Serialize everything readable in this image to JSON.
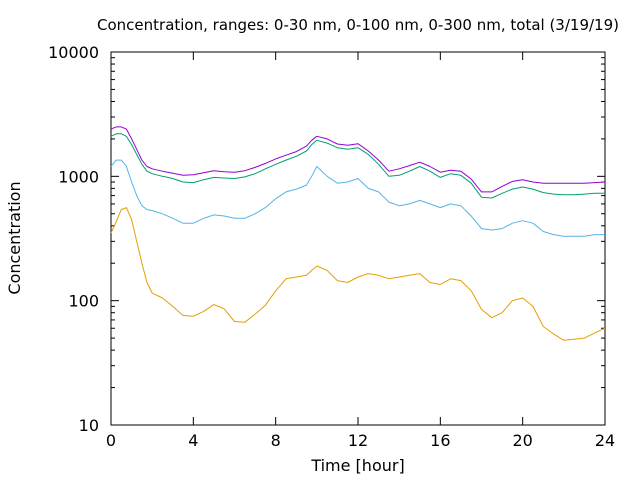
{
  "chart_data": {
    "type": "line",
    "title": "Concentration, ranges: 0-30 nm, 0-100 nm, 0-300 nm, total (3/19/19)",
    "xlabel": "Time [hour]",
    "ylabel": "Concentration",
    "xlim": [
      0,
      24
    ],
    "ylim": [
      10,
      10000
    ],
    "yscale": "log",
    "xticks": [
      0,
      4,
      8,
      12,
      16,
      20,
      24
    ],
    "yticks": [
      10,
      100,
      1000,
      10000
    ],
    "xtick_labels": [
      "0",
      "4",
      "8",
      "12",
      "16",
      "20",
      "24"
    ],
    "ytick_labels": [
      "10",
      "100",
      "1000",
      "10000"
    ],
    "grid": false,
    "legend": "none",
    "x": [
      0,
      0.25,
      0.5,
      0.75,
      1,
      1.25,
      1.5,
      1.75,
      2,
      2.5,
      3,
      3.5,
      4,
      4.5,
      5,
      5.5,
      6,
      6.5,
      7,
      7.5,
      8,
      8.5,
      9,
      9.5,
      9.75,
      10,
      10.5,
      11,
      11.5,
      12,
      12.5,
      13,
      13.5,
      14,
      14.5,
      15,
      15.5,
      16,
      16.5,
      17,
      17.5,
      18,
      18.5,
      19,
      19.5,
      20,
      20.5,
      21,
      21.5,
      22,
      22.5,
      23,
      23.5,
      24
    ],
    "series": [
      {
        "color": "#e69f00",
        "values": [
          350,
          430,
          540,
          560,
          450,
          300,
          200,
          140,
          115,
          105,
          90,
          76,
          75,
          82,
          93,
          86,
          68,
          67,
          78,
          92,
          120,
          150,
          155,
          160,
          175,
          190,
          175,
          145,
          140,
          155,
          165,
          160,
          150,
          155,
          160,
          165,
          140,
          135,
          150,
          145,
          120,
          85,
          73,
          80,
          100,
          105,
          90,
          62,
          54,
          48,
          49,
          50,
          55,
          60
        ]
      },
      {
        "color": "#56b4e9",
        "values": [
          1200,
          1350,
          1350,
          1200,
          900,
          700,
          580,
          540,
          530,
          500,
          460,
          420,
          420,
          460,
          490,
          480,
          460,
          460,
          500,
          560,
          660,
          750,
          790,
          850,
          1000,
          1200,
          1000,
          880,
          900,
          960,
          800,
          750,
          620,
          580,
          600,
          640,
          600,
          560,
          600,
          580,
          480,
          380,
          370,
          380,
          420,
          440,
          420,
          360,
          340,
          330,
          330,
          330,
          340,
          340
        ]
      },
      {
        "color": "#009e73",
        "values": [
          2100,
          2200,
          2200,
          2100,
          1800,
          1500,
          1250,
          1100,
          1050,
          1000,
          960,
          900,
          890,
          940,
          980,
          970,
          960,
          990,
          1050,
          1150,
          1250,
          1350,
          1450,
          1600,
          1800,
          1950,
          1850,
          1700,
          1650,
          1700,
          1500,
          1250,
          1000,
          1020,
          1100,
          1200,
          1100,
          980,
          1050,
          1020,
          880,
          680,
          670,
          730,
          790,
          820,
          790,
          740,
          720,
          710,
          710,
          720,
          730,
          730
        ]
      },
      {
        "color": "#9400d3",
        "values": [
          2400,
          2500,
          2500,
          2400,
          2000,
          1650,
          1350,
          1200,
          1150,
          1100,
          1060,
          1020,
          1030,
          1070,
          1110,
          1090,
          1080,
          1110,
          1180,
          1270,
          1380,
          1480,
          1580,
          1750,
          1950,
          2100,
          2000,
          1820,
          1780,
          1830,
          1600,
          1350,
          1100,
          1150,
          1220,
          1300,
          1200,
          1080,
          1120,
          1100,
          950,
          750,
          750,
          830,
          910,
          940,
          900,
          880,
          880,
          880,
          880,
          880,
          890,
          900
        ]
      }
    ]
  }
}
